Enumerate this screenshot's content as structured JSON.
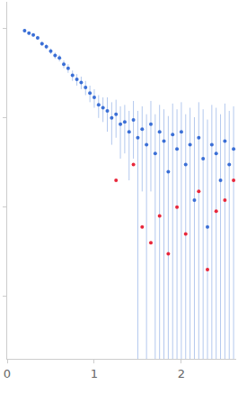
{
  "chart_data": {
    "type": "scatter",
    "log": "y",
    "grid": false,
    "tick_labels": "x",
    "xlim": [
      0,
      2.63
    ],
    "xticks": [
      0,
      1,
      2
    ],
    "ylim": [
      0.0002,
      2
    ],
    "yticks": [
      0.001,
      0.01,
      0.1,
      1
    ],
    "series": [
      {
        "color": "#3b6fd6",
        "marker": "circle",
        "error_color": "#b3c8ee",
        "x": [
          0.2,
          0.25,
          0.3,
          0.35,
          0.4,
          0.45,
          0.5,
          0.55,
          0.6,
          0.65,
          0.7,
          0.75,
          0.8,
          0.85,
          0.9,
          0.95,
          1.0,
          1.05,
          1.1,
          1.15,
          1.2,
          1.25,
          1.3,
          1.35,
          1.4,
          1.45,
          1.5,
          1.55,
          1.6,
          1.65,
          1.7,
          1.75,
          1.8,
          1.85,
          1.9,
          1.95,
          2.0,
          2.05,
          2.1,
          2.15,
          2.2,
          2.25,
          2.3,
          2.35,
          2.4,
          2.45,
          2.5,
          2.55,
          2.6
        ],
        "values": [
          0.95,
          0.89,
          0.85,
          0.79,
          0.68,
          0.63,
          0.56,
          0.5,
          0.47,
          0.4,
          0.36,
          0.3,
          0.27,
          0.25,
          0.22,
          0.19,
          0.17,
          0.14,
          0.13,
          0.12,
          0.1,
          0.11,
          0.085,
          0.09,
          0.07,
          0.095,
          0.06,
          0.075,
          0.05,
          0.085,
          0.04,
          0.07,
          0.055,
          0.025,
          0.065,
          0.045,
          0.07,
          0.03,
          0.05,
          0.012,
          0.06,
          0.035,
          0.006,
          0.05,
          0.04,
          0.02,
          0.055,
          0.03,
          0.045
        ],
        "errors": [
          0.04,
          0.04,
          0.04,
          0.04,
          0.04,
          0.04,
          0.04,
          0.04,
          0.04,
          0.04,
          0.04,
          0.04,
          0.04,
          0.04,
          0.04,
          0.04,
          0.04,
          0.04,
          0.04,
          0.05,
          0.05,
          0.05,
          0.05,
          0.05,
          0.05,
          0.06,
          0.06,
          0.06,
          0.06,
          0.07,
          0.07,
          0.07,
          0.07,
          0.08,
          0.08,
          0.08,
          0.08,
          0.08,
          0.08,
          0.09,
          0.09,
          0.09,
          0.09,
          0.09,
          0.09,
          0.09,
          0.09,
          0.09,
          0.09
        ]
      },
      {
        "color": "#e8283c",
        "marker": "circle",
        "x": [
          1.25,
          1.45,
          1.55,
          1.65,
          1.75,
          1.85,
          1.95,
          2.05,
          2.2,
          2.3,
          2.4,
          2.5,
          2.6
        ],
        "values": [
          0.02,
          0.03,
          0.006,
          0.004,
          0.008,
          0.003,
          0.01,
          0.005,
          0.015,
          0.002,
          0.009,
          0.012,
          0.02
        ]
      }
    ]
  }
}
